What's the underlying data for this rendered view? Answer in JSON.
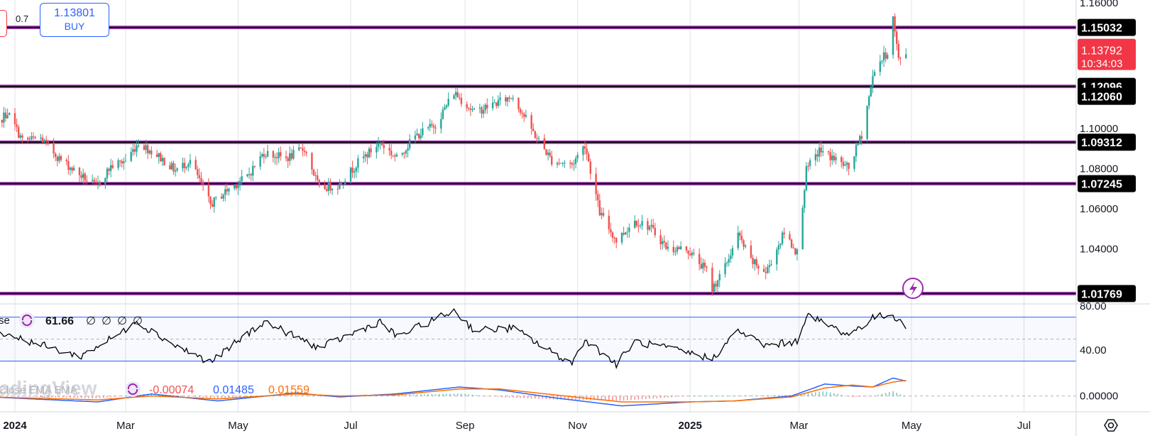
{
  "order_panel": {
    "spread": "0.7",
    "buy_price": "1.13801",
    "buy_label": "BUY"
  },
  "watermark": "TradingView",
  "colors": {
    "up": "#26a69a",
    "down": "#ef5350",
    "level": "#9c27b0",
    "ema_fast": "#2962ff",
    "ema_slow": "#ff6d00",
    "rsi_band": "#2962ff"
  },
  "chart_data": [
    {
      "type": "candlestick",
      "x_ticks": [
        "2024",
        "Mar",
        "May",
        "Jul",
        "Sep",
        "Nov",
        "2025",
        "Mar",
        "May",
        "Jul"
      ],
      "y_ticks": [
        "1.04000",
        "1.06000",
        "1.08000",
        "1.10000"
      ],
      "y_axis_top_partial": "1.16000",
      "ylim": [
        1.0125,
        1.164
      ],
      "horizontal_levels": [
        1.15032,
        1.12096,
        1.09312,
        1.07245,
        1.01769
      ],
      "level_labels": [
        "1.15032",
        "1.12096",
        "1.12060",
        "1.09312",
        "1.07245",
        "1.01769"
      ],
      "current_price": {
        "value": "1.13792",
        "countdown": "10:34:03"
      },
      "close_path": [
        [
          "2023-12-18",
          1.098
        ],
        [
          "2023-12-28",
          1.108
        ],
        [
          "2024-01-05",
          1.094
        ],
        [
          "2024-01-15",
          1.095
        ],
        [
          "2024-01-25",
          1.085
        ],
        [
          "2024-02-05",
          1.077
        ],
        [
          "2024-02-14",
          1.071
        ],
        [
          "2024-02-22",
          1.081
        ],
        [
          "2024-03-01",
          1.084
        ],
        [
          "2024-03-08",
          1.093
        ],
        [
          "2024-03-19",
          1.086
        ],
        [
          "2024-03-28",
          1.079
        ],
        [
          "2024-04-05",
          1.084
        ],
        [
          "2024-04-16",
          1.062
        ],
        [
          "2024-04-26",
          1.07
        ],
        [
          "2024-05-06",
          1.076
        ],
        [
          "2024-05-15",
          1.088
        ],
        [
          "2024-05-27",
          1.085
        ],
        [
          "2024-06-06",
          1.09
        ],
        [
          "2024-06-14",
          1.07
        ],
        [
          "2024-06-25",
          1.072
        ],
        [
          "2024-07-05",
          1.083
        ],
        [
          "2024-07-17",
          1.093
        ],
        [
          "2024-07-26",
          1.085
        ],
        [
          "2024-08-05",
          1.096
        ],
        [
          "2024-08-16",
          1.102
        ],
        [
          "2024-08-26",
          1.118
        ],
        [
          "2024-09-06",
          1.108
        ],
        [
          "2024-09-16",
          1.112
        ],
        [
          "2024-09-27",
          1.116
        ],
        [
          "2024-10-08",
          1.098
        ],
        [
          "2024-10-18",
          1.084
        ],
        [
          "2024-10-29",
          1.082
        ],
        [
          "2024-11-05",
          1.092
        ],
        [
          "2024-11-13",
          1.058
        ],
        [
          "2024-11-22",
          1.044
        ],
        [
          "2024-12-02",
          1.054
        ],
        [
          "2024-12-10",
          1.051
        ],
        [
          "2024-12-20",
          1.04
        ],
        [
          "2024-12-30",
          1.04
        ],
        [
          "2025-01-10",
          1.029
        ],
        [
          "2025-01-13",
          1.02
        ],
        [
          "2025-01-20",
          1.031
        ],
        [
          "2025-01-27",
          1.047
        ],
        [
          "2025-02-03",
          1.034
        ],
        [
          "2025-02-11",
          1.028
        ],
        [
          "2025-02-21",
          1.048
        ],
        [
          "2025-02-28",
          1.038
        ],
        [
          "2025-03-05",
          1.079
        ],
        [
          "2025-03-12",
          1.089
        ],
        [
          "2025-03-20",
          1.085
        ],
        [
          "2025-03-28",
          1.08
        ],
        [
          "2025-04-04",
          1.097
        ],
        [
          "2025-04-11",
          1.13
        ],
        [
          "2025-04-18",
          1.138
        ],
        [
          "2025-04-21",
          1.155
        ],
        [
          "2025-04-24",
          1.134
        ],
        [
          "2025-04-28",
          1.138
        ]
      ]
    },
    {
      "type": "line",
      "indicator": "RSI",
      "label_partial": "se",
      "value": "61.66",
      "empty_values": [
        "∅",
        "∅",
        "∅",
        "∅"
      ],
      "y_ticks": [
        "80.00",
        "40.00"
      ],
      "ylim": [
        20,
        82
      ],
      "bands": [
        70,
        30
      ],
      "midline": 50,
      "series": [
        [
          "2023-12-18",
          60
        ],
        [
          "2024-01-05",
          50
        ],
        [
          "2024-02-05",
          34
        ],
        [
          "2024-03-01",
          58
        ],
        [
          "2024-03-05",
          68
        ],
        [
          "2024-03-28",
          44
        ],
        [
          "2024-04-16",
          29
        ],
        [
          "2024-05-15",
          66
        ],
        [
          "2024-06-14",
          42
        ],
        [
          "2024-07-17",
          66
        ],
        [
          "2024-07-26",
          52
        ],
        [
          "2024-08-26",
          76
        ],
        [
          "2024-09-06",
          58
        ],
        [
          "2024-09-27",
          60
        ],
        [
          "2024-10-18",
          38
        ],
        [
          "2024-10-29",
          28
        ],
        [
          "2024-11-05",
          50
        ],
        [
          "2024-11-22",
          27
        ],
        [
          "2024-12-02",
          48
        ],
        [
          "2024-12-30",
          38
        ],
        [
          "2025-01-13",
          32
        ],
        [
          "2025-01-27",
          58
        ],
        [
          "2025-02-11",
          44
        ],
        [
          "2025-02-28",
          48
        ],
        [
          "2025-03-05",
          72
        ],
        [
          "2025-03-28",
          54
        ],
        [
          "2025-04-11",
          70
        ],
        [
          "2025-04-21",
          72
        ],
        [
          "2025-04-28",
          62
        ]
      ]
    },
    {
      "type": "line",
      "indicator": "MACD",
      "label_partial": "Close EMA EMA",
      "values": [
        "-0.00074",
        "0.01485",
        "0.01559"
      ],
      "y_ticks": [
        "0.00000"
      ],
      "ylim": [
        -0.016,
        0.024
      ],
      "series": [
        {
          "name": "0.01485",
          "data": [
            [
              "2023-12-18",
              -0.001
            ],
            [
              "2024-02-15",
              -0.006
            ],
            [
              "2024-03-15",
              0.002
            ],
            [
              "2024-04-20",
              -0.005
            ],
            [
              "2024-06-01",
              0.003
            ],
            [
              "2024-06-25",
              -0.001
            ],
            [
              "2024-07-25",
              0.002
            ],
            [
              "2024-08-29",
              0.009
            ],
            [
              "2024-09-20",
              0.006
            ],
            [
              "2024-10-20",
              -0.002
            ],
            [
              "2024-11-25",
              -0.01
            ],
            [
              "2025-01-01",
              -0.006
            ],
            [
              "2025-01-25",
              -0.005
            ],
            [
              "2025-02-25",
              0.0
            ],
            [
              "2025-03-15",
              0.012
            ],
            [
              "2025-03-30",
              0.01
            ],
            [
              "2025-04-10",
              0.009
            ],
            [
              "2025-04-21",
              0.018
            ],
            [
              "2025-04-28",
              0.015
            ]
          ]
        },
        {
          "name": "0.01559",
          "data": [
            [
              "2023-12-18",
              -0.001
            ],
            [
              "2024-02-15",
              -0.004
            ],
            [
              "2024-03-15",
              0.0
            ],
            [
              "2024-04-20",
              -0.003
            ],
            [
              "2024-06-01",
              0.002
            ],
            [
              "2024-06-25",
              0.0
            ],
            [
              "2024-07-25",
              0.001
            ],
            [
              "2024-08-29",
              0.007
            ],
            [
              "2024-09-20",
              0.007
            ],
            [
              "2024-10-20",
              0.001
            ],
            [
              "2024-11-25",
              -0.006
            ],
            [
              "2025-01-01",
              -0.006
            ],
            [
              "2025-01-25",
              -0.005
            ],
            [
              "2025-02-25",
              -0.001
            ],
            [
              "2025-03-15",
              0.008
            ],
            [
              "2025-03-30",
              0.011
            ],
            [
              "2025-04-10",
              0.009
            ],
            [
              "2025-04-21",
              0.014
            ],
            [
              "2025-04-28",
              0.0156
            ]
          ]
        }
      ]
    }
  ]
}
